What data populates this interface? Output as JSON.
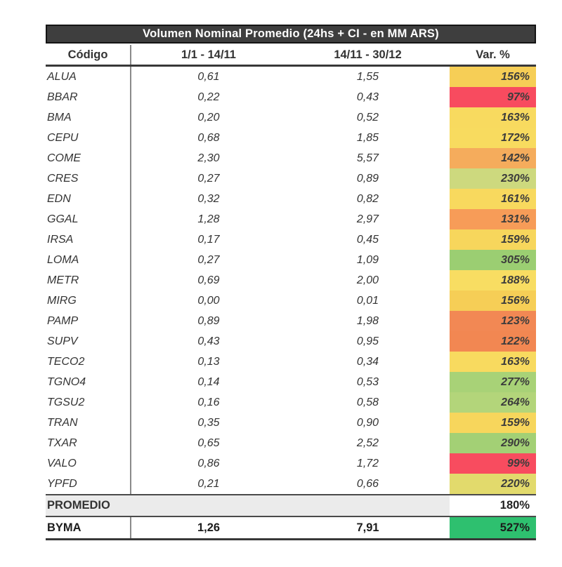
{
  "chart_data": {
    "type": "table",
    "title": "Volumen Nominal Promedio (24hs + CI - en MM ARS)",
    "columns": [
      "Código",
      "1/1  -  14/11",
      "14/11  -  30/12",
      "Var. %"
    ],
    "legend_note": "Var. % column uses red-yellow-green conditional color scale",
    "colors": {
      "title_bg": "#3E3E3E",
      "title_text": "#FFFFFF",
      "promedio_row_bg": "#EBEBEB",
      "divider": "#8A8A8A"
    },
    "rows": [
      {
        "code": "ALUA",
        "v1": "0,61",
        "v2": "1,55",
        "var": "156%",
        "color": "#F6CE56"
      },
      {
        "code": "BBAR",
        "v1": "0,22",
        "v2": "0,43",
        "var": "97%",
        "color": "#F84B5F"
      },
      {
        "code": "BMA",
        "v1": "0,20",
        "v2": "0,52",
        "var": "163%",
        "color": "#F8DA5F"
      },
      {
        "code": "CEPU",
        "v1": "0,68",
        "v2": "1,85",
        "var": "172%",
        "color": "#F8DB5F"
      },
      {
        "code": "COME",
        "v1": "2,30",
        "v2": "5,57",
        "var": "142%",
        "color": "#F5AC5C"
      },
      {
        "code": "CRES",
        "v1": "0,27",
        "v2": "0,89",
        "var": "230%",
        "color": "#CDD97E"
      },
      {
        "code": "EDN",
        "v1": "0,32",
        "v2": "0,82",
        "var": "161%",
        "color": "#F8D95E"
      },
      {
        "code": "GGAL",
        "v1": "1,28",
        "v2": "2,97",
        "var": "131%",
        "color": "#F79C58"
      },
      {
        "code": "IRSA",
        "v1": "0,17",
        "v2": "0,45",
        "var": "159%",
        "color": "#F7D65C"
      },
      {
        "code": "LOMA",
        "v1": "0,27",
        "v2": "1,09",
        "var": "305%",
        "color": "#9BCE72"
      },
      {
        "code": "METR",
        "v1": "0,69",
        "v2": "2,00",
        "var": "188%",
        "color": "#F8DD62"
      },
      {
        "code": "MIRG",
        "v1": "0,00",
        "v2": "0,01",
        "var": "156%",
        "color": "#F6CE56"
      },
      {
        "code": "PAMP",
        "v1": "0,89",
        "v2": "1,98",
        "var": "123%",
        "color": "#F28854"
      },
      {
        "code": "SUPV",
        "v1": "0,43",
        "v2": "0,95",
        "var": "122%",
        "color": "#F28752"
      },
      {
        "code": "TECO2",
        "v1": "0,13",
        "v2": "0,34",
        "var": "163%",
        "color": "#F8DA5F"
      },
      {
        "code": "TGNO4",
        "v1": "0,14",
        "v2": "0,53",
        "var": "277%",
        "color": "#A8D277"
      },
      {
        "code": "TGSU2",
        "v1": "0,16",
        "v2": "0,58",
        "var": "264%",
        "color": "#B3D57A"
      },
      {
        "code": "TRAN",
        "v1": "0,35",
        "v2": "0,90",
        "var": "159%",
        "color": "#F7D65C"
      },
      {
        "code": "TXAR",
        "v1": "0,65",
        "v2": "2,52",
        "var": "290%",
        "color": "#A3D075"
      },
      {
        "code": "VALO",
        "v1": "0,86",
        "v2": "1,72",
        "var": "99%",
        "color": "#F84C5F"
      },
      {
        "code": "YPFD",
        "v1": "0,21",
        "v2": "0,66",
        "var": "220%",
        "color": "#E2DA6C"
      }
    ],
    "summary": {
      "promedio": {
        "label": "PROMEDIO",
        "var": "180%"
      },
      "byma": {
        "code": "BYMA",
        "v1": "1,26",
        "v2": "7,91",
        "var": "527%",
        "color": "#2EC06F"
      }
    }
  }
}
